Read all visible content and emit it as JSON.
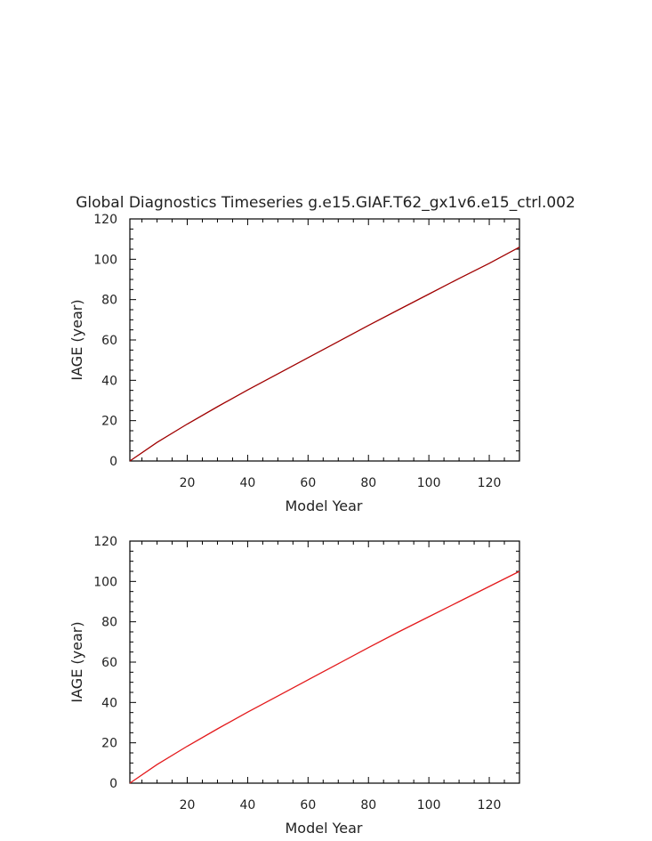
{
  "title": "Global Diagnostics Timeseries g.e15.GIAF.T62_gx1v6.e15_ctrl.002",
  "colors": {
    "axis": "#000000",
    "text": "#222222",
    "series_top": "#a00000",
    "series_bottom": "#e31a1c"
  },
  "chart_data": [
    {
      "type": "line",
      "xlabel": "Model Year",
      "ylabel": "IAGE (year)",
      "xlim": [
        1,
        130
      ],
      "ylim": [
        0,
        120
      ],
      "x_ticks": [
        "20",
        "40",
        "60",
        "80",
        "100",
        "120"
      ],
      "y_ticks": [
        "0",
        "20",
        "40",
        "60",
        "80",
        "100",
        "120"
      ],
      "grid": false,
      "series": [
        {
          "color": "#a00000",
          "x": [
            1,
            10,
            20,
            30,
            40,
            50,
            60,
            70,
            80,
            90,
            100,
            110,
            120,
            130
          ],
          "y": [
            0,
            9.2,
            18.3,
            26.9,
            35.2,
            43.2,
            51.2,
            59.2,
            67.2,
            75.0,
            82.7,
            90.5,
            98.0,
            106.0
          ]
        }
      ]
    },
    {
      "type": "line",
      "xlabel": "Model Year",
      "ylabel": "IAGE (year)",
      "xlim": [
        1,
        130
      ],
      "ylim": [
        0,
        120
      ],
      "x_ticks": [
        "20",
        "40",
        "60",
        "80",
        "100",
        "120"
      ],
      "y_ticks": [
        "0",
        "20",
        "40",
        "60",
        "80",
        "100",
        "120"
      ],
      "grid": false,
      "series": [
        {
          "color": "#e31a1c",
          "x": [
            1,
            10,
            20,
            30,
            40,
            50,
            60,
            70,
            80,
            90,
            100,
            110,
            120,
            130
          ],
          "y": [
            0,
            9.2,
            18.3,
            26.9,
            35.2,
            43.2,
            51.2,
            59.2,
            67.2,
            75.0,
            82.5,
            90.0,
            97.5,
            105.0
          ]
        }
      ]
    }
  ]
}
